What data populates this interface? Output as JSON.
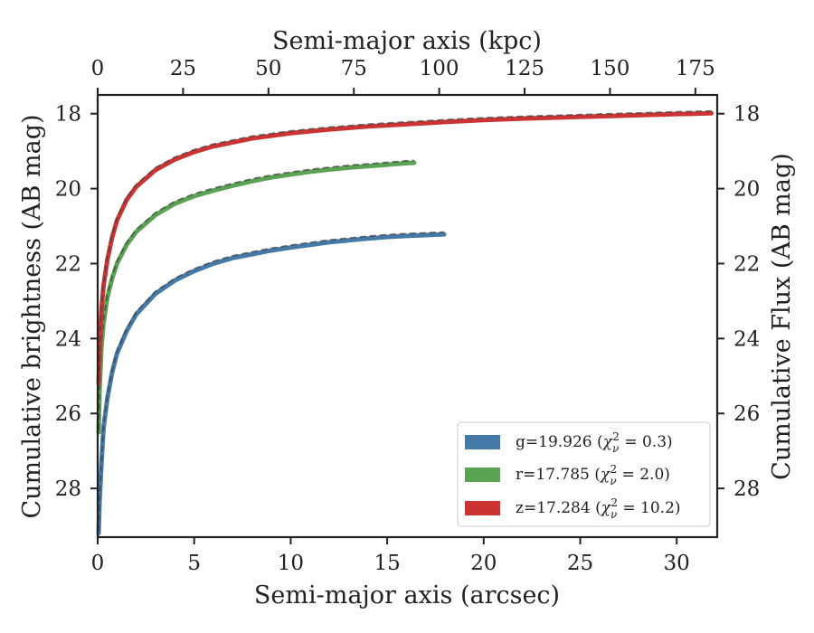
{
  "chart_data": {
    "type": "line",
    "xlabel": "Semi-major axis (arcsec)",
    "ylabel": "Cumulative brightness (AB mag)",
    "x2label": "Semi-major axis (kpc)",
    "y2label": "Cumulative Flux (AB mag)",
    "xlim": [
      0,
      32.1
    ],
    "ylim": [
      29.3,
      17.5
    ],
    "x2lim": [
      0,
      181.4
    ],
    "y_inverted": true,
    "xticks": [
      "0",
      "5",
      "10",
      "15",
      "20",
      "25",
      "30"
    ],
    "yticks": [
      "18",
      "20",
      "22",
      "24",
      "26",
      "28"
    ],
    "x2ticks": [
      "0",
      "25",
      "50",
      "75",
      "100",
      "125",
      "150",
      "175"
    ],
    "y2ticks": [
      "18",
      "20",
      "22",
      "24",
      "26",
      "28"
    ],
    "grid": false,
    "legend_position": "lower-right",
    "series": [
      {
        "name": "g=19.926",
        "chi2": "0.3",
        "color": "#4479a8",
        "x": [
          0.05,
          0.1,
          0.2,
          0.3,
          0.5,
          0.75,
          1.0,
          1.5,
          2.0,
          3.0,
          4.0,
          5.0,
          6.0,
          7.0,
          8.0,
          9.0,
          10.0,
          11.0,
          12.0,
          13.0,
          14.0,
          15.0,
          16.0,
          17.0,
          17.95
        ],
        "y": [
          29.2,
          28.3,
          27.3,
          26.4,
          25.6,
          24.9,
          24.4,
          23.8,
          23.35,
          22.8,
          22.45,
          22.2,
          22.0,
          21.85,
          21.75,
          21.65,
          21.57,
          21.5,
          21.43,
          21.38,
          21.33,
          21.29,
          21.26,
          21.24,
          21.22
        ]
      },
      {
        "name": "r=17.785",
        "chi2": "2.0",
        "color": "#5aa353",
        "x": [
          0.05,
          0.1,
          0.2,
          0.3,
          0.5,
          0.75,
          1.0,
          1.5,
          2.0,
          3.0,
          4.0,
          5.0,
          6.0,
          7.0,
          8.0,
          9.0,
          10.0,
          11.0,
          12.0,
          13.0,
          14.0,
          15.0,
          16.0,
          16.4
        ],
        "y": [
          26.5,
          25.3,
          24.2,
          23.6,
          22.9,
          22.4,
          22.0,
          21.5,
          21.15,
          20.7,
          20.4,
          20.2,
          20.05,
          19.92,
          19.8,
          19.7,
          19.62,
          19.55,
          19.49,
          19.44,
          19.4,
          19.36,
          19.32,
          19.31
        ]
      },
      {
        "name": "z=17.284",
        "chi2": "10.2",
        "color": "#cc3333",
        "x": [
          0.05,
          0.1,
          0.2,
          0.3,
          0.5,
          0.75,
          1.0,
          1.5,
          2.0,
          3.0,
          4.0,
          5.0,
          6.0,
          8.0,
          10.0,
          12.0,
          14.0,
          16.0,
          18.0,
          20.0,
          22.0,
          24.0,
          26.0,
          28.0,
          30.0,
          31.8
        ],
        "y": [
          25.2,
          24.3,
          23.2,
          22.6,
          21.9,
          21.3,
          20.85,
          20.3,
          19.95,
          19.5,
          19.22,
          19.02,
          18.87,
          18.66,
          18.52,
          18.42,
          18.34,
          18.28,
          18.22,
          18.17,
          18.13,
          18.1,
          18.07,
          18.04,
          18.01,
          17.99
        ]
      }
    ]
  }
}
